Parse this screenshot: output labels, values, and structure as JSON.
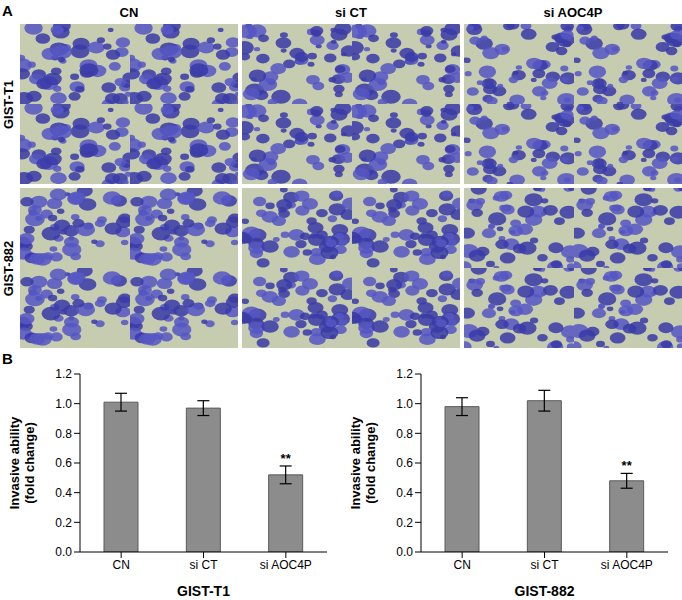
{
  "figure": {
    "panel_a": {
      "label": "A",
      "columns": [
        "CN",
        "si CT",
        "si AOC4P"
      ],
      "rows": [
        "GIST-T1",
        "GIST-882"
      ]
    },
    "panel_b": {
      "label": "B"
    }
  },
  "chart_data": [
    {
      "type": "bar",
      "title": "GIST-T1",
      "ylabel": "Invasive ability (fold change)",
      "categories": [
        "CN",
        "si CT",
        "si AOC4P"
      ],
      "values": [
        1.01,
        0.97,
        0.52
      ],
      "errors": [
        0.06,
        0.05,
        0.06
      ],
      "annotations": [
        {
          "category": "si AOC4P",
          "text": "**"
        }
      ],
      "color": "#8c8c8c",
      "ylim": [
        0,
        1.2
      ],
      "yticks": [
        {
          "value": 0,
          "label": "0.0"
        },
        {
          "value": 0.2,
          "label": "0.2"
        },
        {
          "value": 0.4,
          "label": "0.4"
        },
        {
          "value": 0.6,
          "label": "0.6"
        },
        {
          "value": 0.8,
          "label": "0.8"
        },
        {
          "value": 1,
          "label": "1.0"
        },
        {
          "value": 1.2,
          "label": "1.2"
        }
      ],
      "grid": false
    },
    {
      "type": "bar",
      "title": "GIST-882",
      "ylabel": "Invasive ability (fold change)",
      "categories": [
        "CN",
        "si CT",
        "si AOC4P"
      ],
      "values": [
        0.98,
        1.02,
        0.48
      ],
      "errors": [
        0.06,
        0.07,
        0.05
      ],
      "annotations": [
        {
          "category": "si AOC4P",
          "text": "**"
        }
      ],
      "color": "#8c8c8c",
      "ylim": [
        0,
        1.2
      ],
      "yticks": [
        {
          "value": 0,
          "label": "0.0"
        },
        {
          "value": 0.2,
          "label": "0.2"
        },
        {
          "value": 0.4,
          "label": "0.4"
        },
        {
          "value": 0.6,
          "label": "0.6"
        },
        {
          "value": 0.8,
          "label": "0.8"
        },
        {
          "value": 1,
          "label": "1.0"
        },
        {
          "value": 1.2,
          "label": "1.2"
        }
      ],
      "grid": false
    }
  ]
}
